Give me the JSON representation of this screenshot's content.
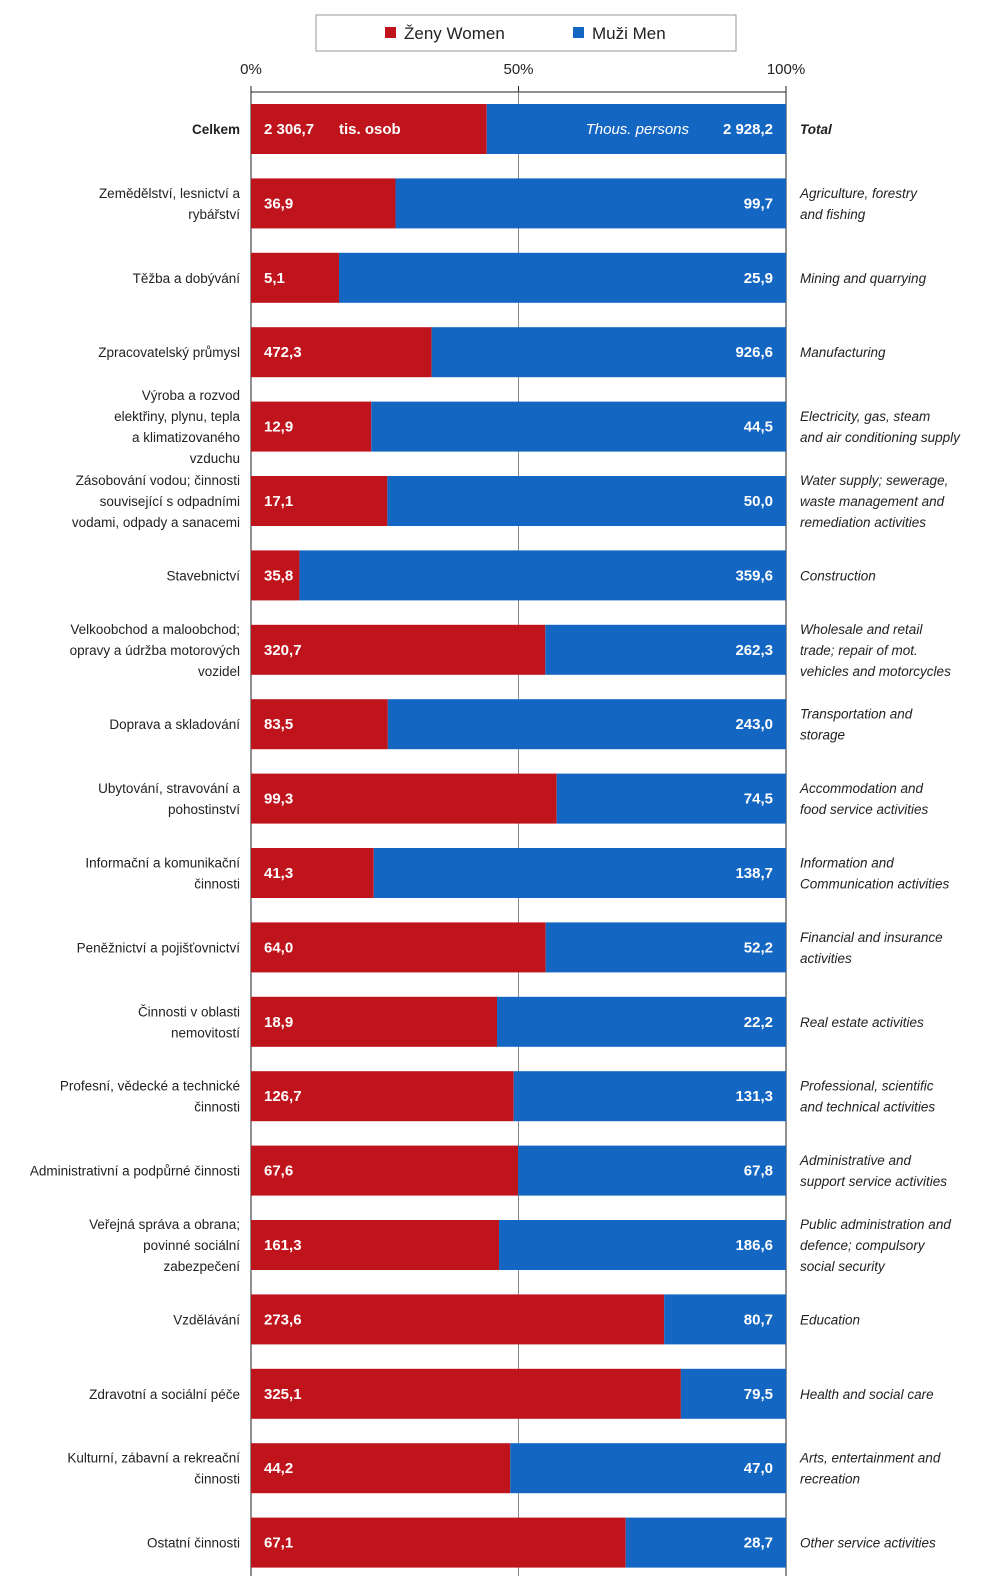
{
  "chart_data": {
    "type": "bar",
    "stacked_percent": true,
    "orientation": "horizontal",
    "axis": {
      "ticks": [
        "0%",
        "50%",
        "100%"
      ],
      "range": [
        0,
        100
      ],
      "gridlines_at": [
        50
      ]
    },
    "legend": {
      "placement": "top-center",
      "items": [
        {
          "label": "Ženy Women",
          "color": "#c0141d"
        },
        {
          "label": "Muži Men",
          "color": "#1366c2"
        }
      ]
    },
    "colors": {
      "women": "#c0141d",
      "men": "#1366c2"
    },
    "total_units": {
      "women_unit": "tis. osob",
      "men_unit": "Thous. persons"
    },
    "series": [
      {
        "name": "Ženy Women",
        "values": [
          2306.7,
          36.9,
          5.1,
          472.3,
          12.9,
          17.1,
          35.8,
          320.7,
          83.5,
          99.3,
          41.3,
          64.0,
          18.9,
          126.7,
          67.6,
          161.3,
          273.6,
          325.1,
          44.2,
          67.1
        ]
      },
      {
        "name": "Muži Men",
        "values": [
          2928.2,
          99.7,
          25.9,
          926.6,
          44.5,
          50.0,
          359.6,
          262.3,
          243.0,
          74.5,
          138.7,
          52.2,
          22.2,
          131.3,
          67.8,
          186.6,
          80.7,
          79.5,
          47.0,
          28.7
        ]
      }
    ],
    "categories": [
      {
        "cz": [
          "Celkem"
        ],
        "en": [
          "Total"
        ],
        "women": "2 306,7",
        "men": "2 928,2",
        "bold": true
      },
      {
        "cz": [
          "Zemědělství, lesnictví a",
          "rybářství"
        ],
        "en": [
          "Agriculture, forestry",
          "and fishing"
        ],
        "women": "36,9",
        "men": "99,7"
      },
      {
        "cz": [
          "Těžba a dobývání"
        ],
        "en": [
          "Mining and quarrying"
        ],
        "women": "5,1",
        "men": "25,9"
      },
      {
        "cz": [
          "Zpracovatelský průmysl"
        ],
        "en": [
          "Manufacturing"
        ],
        "women": "472,3",
        "men": "926,6"
      },
      {
        "cz": [
          "Výroba a rozvod",
          "elektřiny, plynu, tepla",
          "a klimatizovaného",
          "vzduchu"
        ],
        "en": [
          "Electricity, gas, steam",
          "and air conditioning supply"
        ],
        "women": "12,9",
        "men": "44,5"
      },
      {
        "cz": [
          "Zásobování vodou; činnosti",
          "související s odpadními",
          "vodami, odpady a sanacemi"
        ],
        "en": [
          "Water supply; sewerage,",
          "waste management and",
          "remediation activities"
        ],
        "women": "17,1",
        "men": "50,0"
      },
      {
        "cz": [
          "Stavebnictví"
        ],
        "en": [
          "Construction"
        ],
        "women": "35,8",
        "men": "359,6"
      },
      {
        "cz": [
          "Velkoobchod a maloobchod;",
          "opravy a údržba motorových",
          "vozidel"
        ],
        "en": [
          "Wholesale and retail",
          "trade; repair of mot.",
          "vehicles and motorcycles"
        ],
        "women": "320,7",
        "men": "262,3"
      },
      {
        "cz": [
          "Doprava a skladování"
        ],
        "en": [
          "Transportation and",
          "storage"
        ],
        "women": "83,5",
        "men": "243,0"
      },
      {
        "cz": [
          "Ubytování, stravování a",
          "pohostinství"
        ],
        "en": [
          "Accommodation and",
          "food service activities"
        ],
        "women": "99,3",
        "men": "74,5"
      },
      {
        "cz": [
          "Informační a komunikační",
          "činnosti"
        ],
        "en": [
          "Information and",
          "Communication activities"
        ],
        "women": "41,3",
        "men": "138,7"
      },
      {
        "cz": [
          "Peněžnictví a pojišťovnictví"
        ],
        "en": [
          "Financial and insurance",
          "activities"
        ],
        "women": "64,0",
        "men": "52,2"
      },
      {
        "cz": [
          "Činnosti v oblasti",
          "nemovitostí"
        ],
        "en": [
          "Real estate activities"
        ],
        "women": "18,9",
        "men": "22,2"
      },
      {
        "cz": [
          "Profesní, vědecké a technické",
          "činnosti"
        ],
        "en": [
          "Professional, scientific",
          "and technical activities"
        ],
        "women": "126,7",
        "men": "131,3"
      },
      {
        "cz": [
          "Administrativní a podpůrné činnosti"
        ],
        "en": [
          "Administrative and",
          "support service activities"
        ],
        "women": "67,6",
        "men": "67,8"
      },
      {
        "cz": [
          "Veřejná správa a obrana;",
          "povinné sociální",
          "zabezpečení"
        ],
        "en": [
          "Public administration and",
          "defence; compulsory",
          "social security"
        ],
        "women": "161,3",
        "men": "186,6"
      },
      {
        "cz": [
          "Vzdělávání"
        ],
        "en": [
          "Education"
        ],
        "women": "273,6",
        "men": "80,7"
      },
      {
        "cz": [
          "Zdravotní a sociální péče"
        ],
        "en": [
          "Health and social care"
        ],
        "women": "325,1",
        "men": "79,5"
      },
      {
        "cz": [
          "Kulturní, zábavní a rekreační",
          "činnosti"
        ],
        "en": [
          "Arts, entertainment and",
          "recreation"
        ],
        "women": "44,2",
        "men": "47,0"
      },
      {
        "cz": [
          "Ostatní činnosti"
        ],
        "en": [
          "Other service activities"
        ],
        "women": "67,1",
        "men": "28,7"
      }
    ]
  }
}
